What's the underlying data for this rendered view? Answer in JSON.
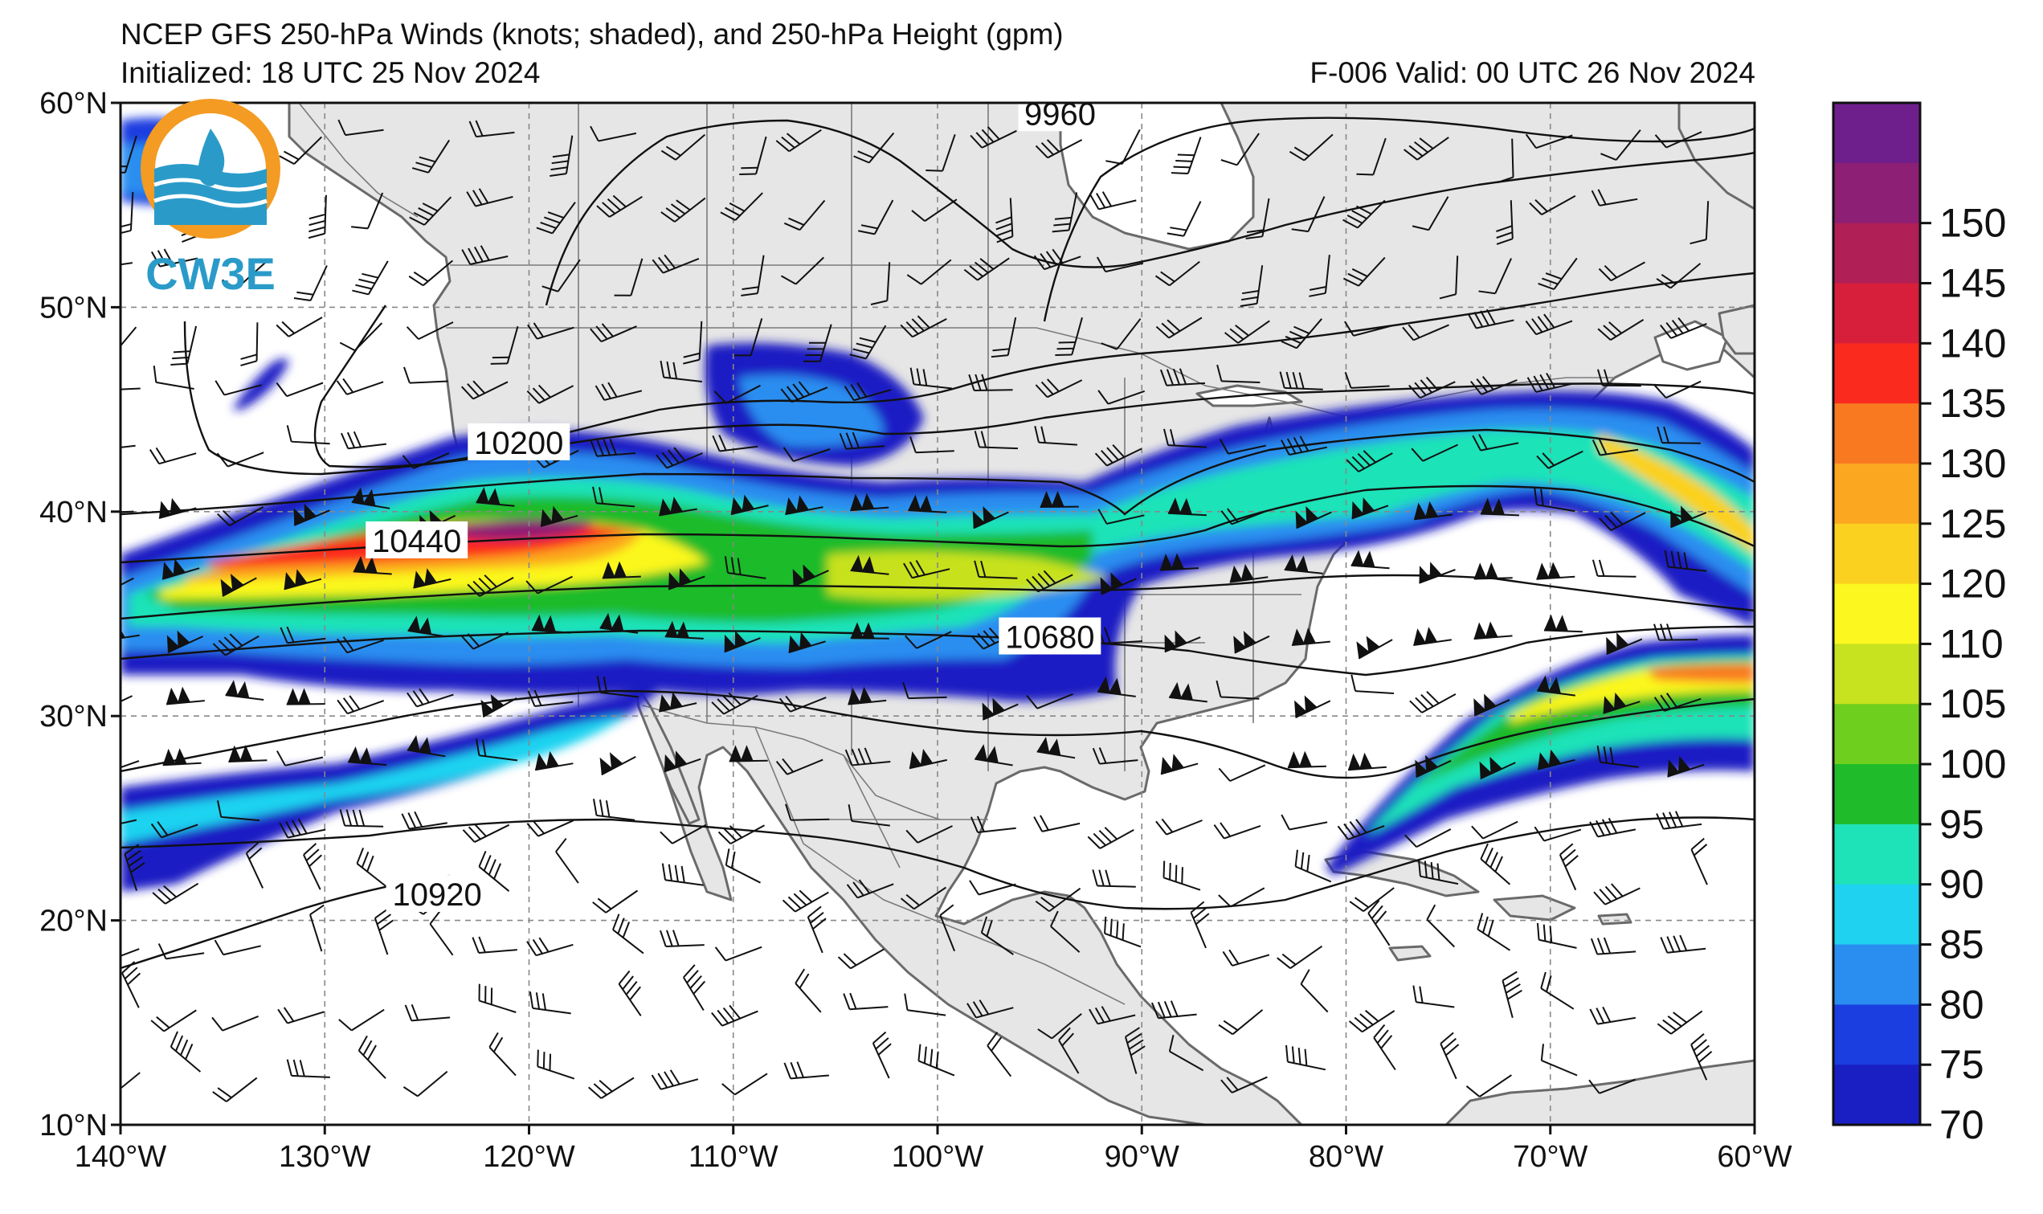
{
  "title": {
    "line1": "NCEP GFS 250-hPa Winds (knots; shaded), and 250-hPa Height (gpm)",
    "initialized": "Initialized: 18 UTC 25 Nov 2024",
    "valid": "F-006  Valid: 00 UTC 26 Nov 2024"
  },
  "logo": {
    "text": "CW3E",
    "ring_color": "#f39b22",
    "wave_color": "#2a9bc9"
  },
  "map": {
    "lon_range": [
      -140,
      -60
    ],
    "lat_range": [
      10,
      60
    ],
    "lon_ticks": [
      "140°W",
      "130°W",
      "120°W",
      "110°W",
      "100°W",
      "90°W",
      "80°W",
      "70°W",
      "60°W"
    ],
    "lat_ticks": [
      "60°N",
      "50°N",
      "40°N",
      "30°N",
      "20°N",
      "10°N"
    ],
    "grid": true,
    "land_color": "#e6e6e6",
    "coast_color": "#6a6a6a"
  },
  "height_contours": [
    {
      "label": "9960",
      "label_lon": -94,
      "label_lat": 59.4
    },
    {
      "label": "10200",
      "label_lon": -120.5,
      "label_lat": 43.3
    },
    {
      "label": "10440",
      "label_lon": -125.5,
      "label_lat": 38.5
    },
    {
      "label": "10680",
      "label_lon": -94.5,
      "label_lat": 33.8
    },
    {
      "label": "10920",
      "label_lon": -124.5,
      "label_lat": 21.2
    }
  ],
  "colorbar": {
    "levels": [
      "70",
      "75",
      "80",
      "85",
      "90",
      "95",
      "100",
      "105",
      "110",
      "120",
      "125",
      "130",
      "135",
      "140",
      "145",
      "150"
    ],
    "colors": [
      "#1a1fc4",
      "#1b3ee0",
      "#2a8ef0",
      "#1fd3f0",
      "#1fe3b8",
      "#1fbb2a",
      "#6fcf1f",
      "#c7e21f",
      "#fbf71f",
      "#fbd11f",
      "#fba71f",
      "#f97920",
      "#fb2a1f",
      "#d71f3c",
      "#b01f55",
      "#8d1f74",
      "#6f1f8c"
    ]
  }
}
